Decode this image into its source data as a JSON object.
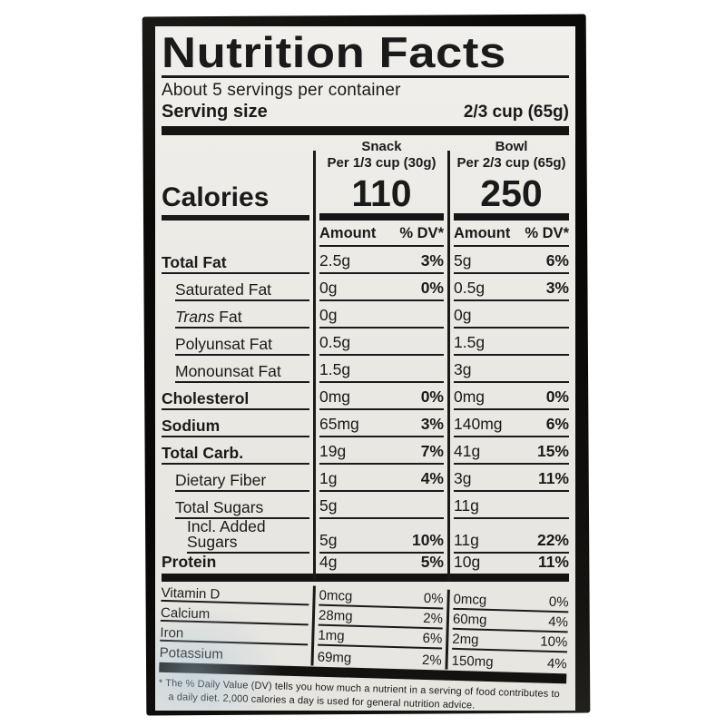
{
  "photo": {
    "background_color": "#ffffff",
    "bag_color": "#0b0a08",
    "label_background": "#eae8e3",
    "text_color": "#1a1a1a"
  },
  "label": {
    "title": "Nutrition Facts",
    "servings_per_container": "About 5 servings per container",
    "serving_size_label": "Serving size",
    "serving_size_value": "2/3 cup (65g)",
    "calories_label": "Calories",
    "amount_header": "Amount",
    "dv_header": "% DV*",
    "columns": [
      {
        "name": "Snack",
        "per": "Per 1/3 cup (30g)",
        "calories": "110"
      },
      {
        "name": "Bowl",
        "per": "Per 2/3 cup (65g)",
        "calories": "250"
      }
    ],
    "rows": [
      {
        "name": "Total Fat",
        "bold": true,
        "snack": [
          "2.5g",
          "3%"
        ],
        "bowl": [
          "5g",
          "6%"
        ]
      },
      {
        "name": "Saturated Fat",
        "indent": 1,
        "snack": [
          "0g",
          "0%"
        ],
        "bowl": [
          "0.5g",
          "3%"
        ]
      },
      {
        "name": "Trans Fat",
        "indent": 1,
        "italic_first": true,
        "snack": [
          "0g",
          ""
        ],
        "bowl": [
          "0g",
          ""
        ]
      },
      {
        "name": "Polyunsat Fat",
        "indent": 1,
        "snack": [
          "0.5g",
          ""
        ],
        "bowl": [
          "1.5g",
          ""
        ]
      },
      {
        "name": "Monounsat Fat",
        "indent": 1,
        "snack": [
          "1.5g",
          ""
        ],
        "bowl": [
          "3g",
          ""
        ]
      },
      {
        "name": "Cholesterol",
        "bold": true,
        "snack": [
          "0mg",
          "0%"
        ],
        "bowl": [
          "0mg",
          "0%"
        ]
      },
      {
        "name": "Sodium",
        "bold": true,
        "snack": [
          "65mg",
          "3%"
        ],
        "bowl": [
          "140mg",
          "6%"
        ]
      },
      {
        "name": "Total Carb.",
        "bold": true,
        "snack": [
          "19g",
          "7%"
        ],
        "bowl": [
          "41g",
          "15%"
        ]
      },
      {
        "name": "Dietary Fiber",
        "indent": 1,
        "snack": [
          "1g",
          "4%"
        ],
        "bowl": [
          "3g",
          "11%"
        ]
      },
      {
        "name": "Total Sugars",
        "indent": 1,
        "snack": [
          "5g",
          ""
        ],
        "bowl": [
          "11g",
          ""
        ]
      },
      {
        "name": "Incl. Added Sugars",
        "indent": 2,
        "snack": [
          "5g",
          "10%"
        ],
        "bowl": [
          "11g",
          "22%"
        ]
      },
      {
        "name": "Protein",
        "bold": true,
        "snack": [
          "4g",
          "5%"
        ],
        "bowl": [
          "10g",
          "11%"
        ]
      }
    ],
    "vitamins": [
      {
        "name": "Vitamin D",
        "snack": [
          "0mcg",
          "0%"
        ],
        "bowl": [
          "0mcg",
          "0%"
        ]
      },
      {
        "name": "Calcium",
        "snack": [
          "28mg",
          "2%"
        ],
        "bowl": [
          "60mg",
          "4%"
        ]
      },
      {
        "name": "Iron",
        "snack": [
          "1mg",
          "6%"
        ],
        "bowl": [
          "2mg",
          "10%"
        ]
      },
      {
        "name": "Potassium",
        "snack": [
          "69mg",
          "2%"
        ],
        "bowl": [
          "150mg",
          "4%"
        ]
      }
    ],
    "footnote": "* The % Daily Value (DV) tells you how much a nutrient in a serving of food contributes to a daily diet. 2,000 calories a day is used for general nutrition advice."
  }
}
